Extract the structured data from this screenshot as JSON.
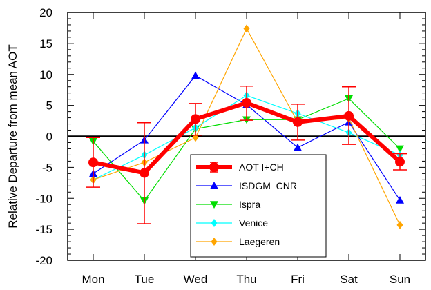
{
  "chart_data": {
    "type": "line",
    "title": "",
    "xlabel": "",
    "ylabel": "Relative Departure from mean AOT",
    "categories": [
      "Mon",
      "Tue",
      "Wed",
      "Thu",
      "Fri",
      "Sat",
      "Sun"
    ],
    "ylim": [
      -20,
      20
    ],
    "yticks": [
      -20,
      -15,
      -10,
      -5,
      0,
      5,
      10,
      15,
      20
    ],
    "zero_line": true,
    "grid": false,
    "legend_position": "lower-center",
    "series": [
      {
        "name": "AOT I+CH",
        "color": "#ff0000",
        "marker": "circle",
        "thick": true,
        "values": [
          -4.2,
          -5.9,
          2.8,
          5.4,
          2.3,
          3.3,
          -4.1
        ],
        "error_low": [
          -8.2,
          -14.1,
          0.2,
          2.6,
          -0.6,
          -1.3,
          -5.4
        ],
        "error_high": [
          -0.2,
          2.2,
          5.3,
          8.1,
          5.2,
          8.0,
          -2.8
        ]
      },
      {
        "name": "ISDGM_CNR",
        "color": "#0000ff",
        "marker": "triangle-up",
        "values": [
          -6.0,
          -0.6,
          9.8,
          5.1,
          -1.8,
          2.3,
          -10.3
        ]
      },
      {
        "name": "Ispra",
        "color": "#00dd00",
        "marker": "triangle-down",
        "values": [
          -0.8,
          -10.4,
          1.2,
          2.7,
          2.7,
          6.1,
          -2.0
        ]
      },
      {
        "name": "Venice",
        "color": "#00ffff",
        "marker": "diamond",
        "values": [
          -7.0,
          -3.0,
          1.4,
          6.6,
          3.7,
          0.6,
          -3.0
        ]
      },
      {
        "name": "Laegeren",
        "color": "#ffa500",
        "marker": "diamond",
        "values": [
          -7.0,
          -4.2,
          -0.2,
          17.4,
          2.3,
          2.9,
          -14.3
        ]
      }
    ]
  }
}
